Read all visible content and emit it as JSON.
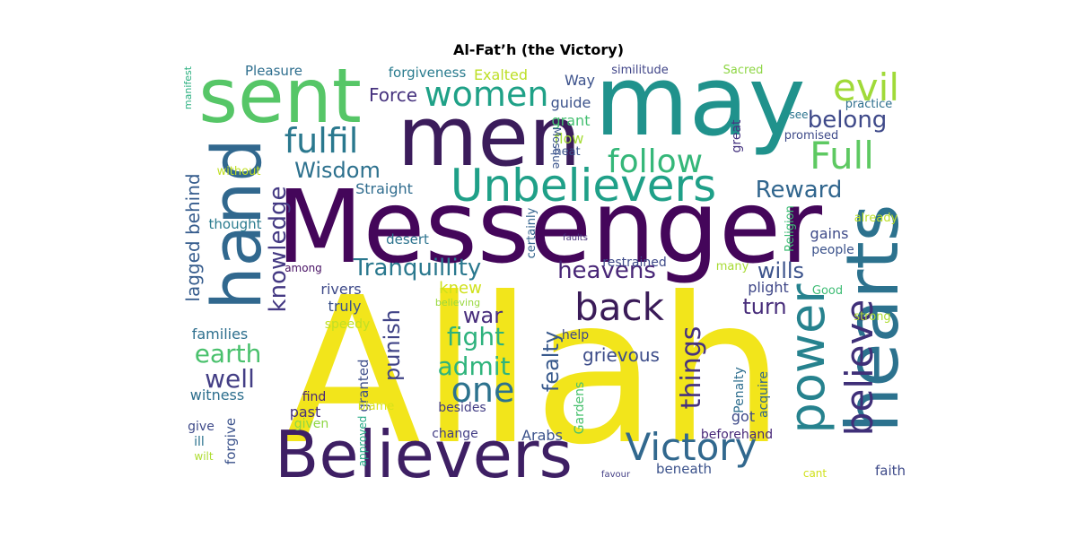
{
  "chart_data": {
    "type": "wordcloud",
    "title": "Al-Fat’h (the Victory)",
    "words": [
      {
        "text": "Allah",
        "color": "#f2e51b"
      },
      {
        "text": "Messenger",
        "color": "#44065a"
      },
      {
        "text": "may",
        "color": "#20928c"
      },
      {
        "text": "men",
        "color": "#3b1c5b"
      },
      {
        "text": "sent",
        "color": "#56c667"
      },
      {
        "text": "hand",
        "color": "#31688e"
      },
      {
        "text": "hearts",
        "color": "#2c728e"
      },
      {
        "text": "Believers",
        "color": "#3e1f64"
      },
      {
        "text": "power",
        "color": "#26828e"
      },
      {
        "text": "Unbelievers",
        "color": "#1fa088"
      },
      {
        "text": "believe",
        "color": "#3f2f78"
      },
      {
        "text": "back",
        "color": "#3a1b58"
      },
      {
        "text": "Victory",
        "color": "#31688e"
      },
      {
        "text": "women",
        "color": "#1fa187"
      },
      {
        "text": "evil",
        "color": "#a0da39"
      },
      {
        "text": "Full",
        "color": "#5ec962"
      },
      {
        "text": "follow",
        "color": "#35b779"
      },
      {
        "text": "fulfil",
        "color": "#2a788e"
      },
      {
        "text": "one",
        "color": "#2c728e"
      },
      {
        "text": "knowledge",
        "color": "#443983"
      },
      {
        "text": "fight",
        "color": "#2db27d"
      },
      {
        "text": "Tranquillity",
        "color": "#2a788e"
      },
      {
        "text": "things",
        "color": "#46327e"
      },
      {
        "text": "heavens",
        "color": "#482677"
      },
      {
        "text": "admit",
        "color": "#2fb47c"
      },
      {
        "text": "well",
        "color": "#433e85"
      },
      {
        "text": "lagged behind",
        "color": "#365c8d"
      },
      {
        "text": "earth",
        "color": "#4ac16d"
      },
      {
        "text": "Wisdom",
        "color": "#2d718e"
      },
      {
        "text": "belong",
        "color": "#3e4989"
      },
      {
        "text": "Reward",
        "color": "#31668e"
      },
      {
        "text": "war",
        "color": "#472d7b"
      },
      {
        "text": "punish",
        "color": "#414487"
      },
      {
        "text": "fealty",
        "color": "#38598c"
      },
      {
        "text": "turn",
        "color": "#472c7a"
      },
      {
        "text": "wills",
        "color": "#3b528b"
      },
      {
        "text": "Force",
        "color": "#46327e"
      },
      {
        "text": "grievous",
        "color": "#3d4d8a"
      },
      {
        "text": "Straight",
        "color": "#2f6c8e"
      },
      {
        "text": "Pleasure",
        "color": "#2e6e8e"
      },
      {
        "text": "forgiveness",
        "color": "#297b8e"
      },
      {
        "text": "Exalted",
        "color": "#bddf26"
      },
      {
        "text": "Way",
        "color": "#3b518b"
      },
      {
        "text": "similitude",
        "color": "#404588"
      },
      {
        "text": "Sacred",
        "color": "#8ed645"
      },
      {
        "text": "practice",
        "color": "#2e6f8e"
      },
      {
        "text": "see",
        "color": "#2c738e"
      },
      {
        "text": "promised",
        "color": "#3e4a89"
      },
      {
        "text": "guide",
        "color": "#3b528b"
      },
      {
        "text": "grant",
        "color": "#44bf70"
      },
      {
        "text": "flow",
        "color": "#a5db36"
      },
      {
        "text": "heat",
        "color": "#3b528b"
      },
      {
        "text": "great",
        "color": "#463480"
      },
      {
        "text": "Mosque",
        "color": "#3a548c"
      },
      {
        "text": "without",
        "color": "#c0df25"
      },
      {
        "text": "thought",
        "color": "#2a7b8e"
      },
      {
        "text": "already",
        "color": "#bddf26"
      },
      {
        "text": "desert",
        "color": "#2c738e"
      },
      {
        "text": "faults",
        "color": "#472f7d"
      },
      {
        "text": "gains",
        "color": "#3e4a89"
      },
      {
        "text": "people",
        "color": "#3b528b"
      },
      {
        "text": "Religion",
        "color": "#3dbc74"
      },
      {
        "text": "certainly",
        "color": "#33638d"
      },
      {
        "text": "restrained",
        "color": "#3e4a89"
      },
      {
        "text": "among",
        "color": "#471063"
      },
      {
        "text": "many",
        "color": "#a8db34"
      },
      {
        "text": "plight",
        "color": "#3f4788"
      },
      {
        "text": "Good",
        "color": "#3dbc74"
      },
      {
        "text": "knew",
        "color": "#d0e11c"
      },
      {
        "text": "rivers",
        "color": "#3e4a89"
      },
      {
        "text": "truly",
        "color": "#3b528b"
      },
      {
        "text": "believing",
        "color": "#98d83e"
      },
      {
        "text": "speedy",
        "color": "#c0df25"
      },
      {
        "text": "strong",
        "color": "#addc30"
      },
      {
        "text": "families",
        "color": "#2e6f8e"
      },
      {
        "text": "help",
        "color": "#3f4889"
      },
      {
        "text": "Penalty",
        "color": "#2e6e8e"
      },
      {
        "text": "acquire",
        "color": "#31668e"
      },
      {
        "text": "witness",
        "color": "#2e6f8e"
      },
      {
        "text": "find",
        "color": "#482677"
      },
      {
        "text": "granted",
        "color": "#3d4e8a"
      },
      {
        "text": "past",
        "color": "#46307e"
      },
      {
        "text": "blame",
        "color": "#d8e219"
      },
      {
        "text": "besides",
        "color": "#433e85"
      },
      {
        "text": "give",
        "color": "#3e4a89"
      },
      {
        "text": "given",
        "color": "#8ed645"
      },
      {
        "text": "got",
        "color": "#3e4a89"
      },
      {
        "text": "Gardens",
        "color": "#48c16e"
      },
      {
        "text": "ill",
        "color": "#2c738e"
      },
      {
        "text": "change",
        "color": "#433e85"
      },
      {
        "text": "Arabs",
        "color": "#3b528b"
      },
      {
        "text": "beforehand",
        "color": "#482878"
      },
      {
        "text": "wilt",
        "color": "#addc30"
      },
      {
        "text": "forgive",
        "color": "#3b528b"
      },
      {
        "text": "approved",
        "color": "#22a884"
      },
      {
        "text": "favour",
        "color": "#433e85"
      },
      {
        "text": "beneath",
        "color": "#3b528b"
      },
      {
        "text": "cant",
        "color": "#d0e11c"
      },
      {
        "text": "faith",
        "color": "#3e4a89"
      },
      {
        "text": "manifest",
        "color": "#29af7f"
      }
    ]
  }
}
